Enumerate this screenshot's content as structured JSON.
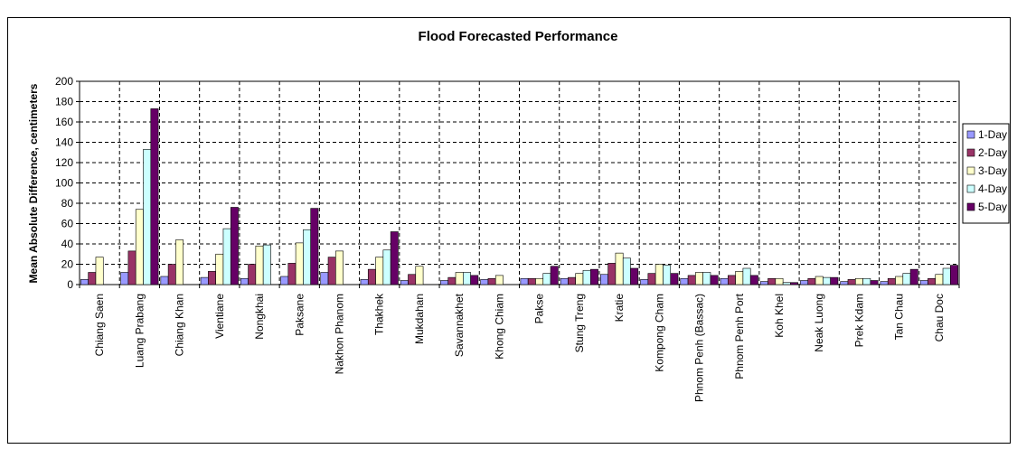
{
  "colors": {
    "series": [
      "#9999ff",
      "#993366",
      "#ffffcc",
      "#ccffff",
      "#660066"
    ],
    "grid": "#000000",
    "frame": "#000000"
  },
  "chart_data": {
    "type": "bar",
    "title": "Flood Forecasted Performance",
    "xlabel": "",
    "ylabel": "Mean Absolute Difference, centimeters",
    "ylim": [
      0,
      200
    ],
    "yticks": [
      "0",
      "20",
      "40",
      "60",
      "80",
      "100",
      "120",
      "140",
      "160",
      "180",
      "200"
    ],
    "grid": true,
    "legend_position": "right",
    "categories": [
      "Chiang Saen",
      "Luang Prabang",
      "Chiang Khan",
      "Vientiane",
      "Nongkhai",
      "Paksane",
      "Nakhon Phanom",
      "Thakhek",
      "Mukdahan",
      "Savannakhet",
      "Khong Chiam",
      "Pakse",
      "Stung Treng",
      "Kratie",
      "Kompong Cham",
      "Phnom Penh (Bassac)",
      "Phnom Penh Port",
      "Koh Khel",
      "Neak Luong",
      "Prek Kdam",
      "Tan Chau",
      "Chau Doc"
    ],
    "series": [
      {
        "name": "1-Day",
        "values": [
          5,
          12,
          8,
          7,
          6,
          8,
          12,
          5,
          4,
          4,
          5,
          6,
          6,
          10,
          5,
          6,
          6,
          3,
          4,
          3,
          3,
          4
        ]
      },
      {
        "name": "2-Day",
        "values": [
          12,
          33,
          20,
          13,
          20,
          21,
          27,
          15,
          10,
          7,
          6,
          6,
          7,
          21,
          11,
          9,
          9,
          6,
          6,
          5,
          6,
          6
        ]
      },
      {
        "name": "3-Day",
        "values": [
          27,
          74,
          44,
          30,
          38,
          41,
          33,
          27,
          18,
          12,
          9,
          6,
          11,
          31,
          20,
          12,
          13,
          6,
          8,
          6,
          8,
          10
        ]
      },
      {
        "name": "4-Day",
        "values": [
          0,
          133,
          0,
          55,
          39,
          54,
          0,
          34,
          0,
          12,
          0,
          11,
          14,
          26,
          19,
          12,
          16,
          2,
          7,
          6,
          11,
          16
        ]
      },
      {
        "name": "5-Day",
        "values": [
          0,
          173,
          0,
          76,
          0,
          75,
          0,
          52,
          0,
          9,
          0,
          18,
          15,
          16,
          11,
          9,
          9,
          2,
          7,
          4,
          15,
          19
        ]
      }
    ]
  }
}
